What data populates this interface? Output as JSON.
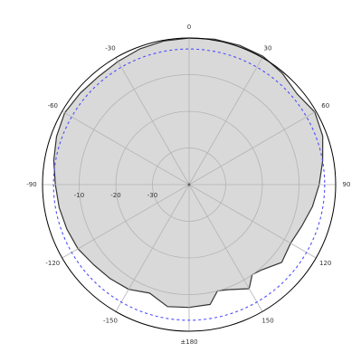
{
  "chart_data": {
    "type": "polar-area",
    "title": "",
    "angle_unit": "degrees",
    "angle_zero": "top",
    "angle_direction": "clockwise",
    "angle_ticks": [
      {
        "angle": 0,
        "label": "0"
      },
      {
        "angle": 30,
        "label": "30"
      },
      {
        "angle": 60,
        "label": "60"
      },
      {
        "angle": 90,
        "label": "90"
      },
      {
        "angle": 120,
        "label": "120"
      },
      {
        "angle": 150,
        "label": "150"
      },
      {
        "angle": 180,
        "label": "±180"
      },
      {
        "angle": -150,
        "label": "-150"
      },
      {
        "angle": -120,
        "label": "-120"
      },
      {
        "angle": -90,
        "label": "-90"
      },
      {
        "angle": -60,
        "label": "-60"
      },
      {
        "angle": -30,
        "label": "-30"
      }
    ],
    "radial_range": [
      -40,
      0
    ],
    "radial_unit": "dB",
    "radial_ticks": [
      {
        "value": -30,
        "label": "-30"
      },
      {
        "value": -20,
        "label": "-20"
      },
      {
        "value": -10,
        "label": "-10"
      },
      {
        "value": 0,
        "label": "0"
      }
    ],
    "grid": true,
    "reference_level_db": -3,
    "series": [
      {
        "style": "filled",
        "points": [
          {
            "angle": 0,
            "db": 0
          },
          {
            "angle": 10,
            "db": 0.3
          },
          {
            "angle": 20,
            "db": 0.4
          },
          {
            "angle": 30,
            "db": 0.4
          },
          {
            "angle": 40,
            "db": -0.4
          },
          {
            "angle": 50,
            "db": -1.5
          },
          {
            "angle": 60,
            "db": -0.4
          },
          {
            "angle": 70,
            "db": -1.2
          },
          {
            "angle": 80,
            "db": -3.0
          },
          {
            "angle": 90,
            "db": -4.5
          },
          {
            "angle": 100,
            "db": -5.8
          },
          {
            "angle": 110,
            "db": -7.2
          },
          {
            "angle": 120,
            "db": -8.0
          },
          {
            "angle": 130,
            "db": -7.0
          },
          {
            "angle": 140,
            "db": -9.5
          },
          {
            "angle": 145,
            "db": -10.0
          },
          {
            "angle": 150,
            "db": -7.2
          },
          {
            "angle": 160,
            "db": -9.5
          },
          {
            "angle": 165,
            "db": -10.0
          },
          {
            "angle": 170,
            "db": -6.8
          },
          {
            "angle": 180,
            "db": -6.5
          },
          {
            "angle": 190,
            "db": -6.2
          },
          {
            "angle": 200,
            "db": -8.5
          },
          {
            "angle": 210,
            "db": -7.0
          },
          {
            "angle": 220,
            "db": -6.5
          },
          {
            "angle": 230,
            "db": -6.0
          },
          {
            "angle": 240,
            "db": -5.0
          },
          {
            "angle": 250,
            "db": -4.5
          },
          {
            "angle": 260,
            "db": -4.0
          },
          {
            "angle": 270,
            "db": -3.5
          },
          {
            "angle": 280,
            "db": -2.5
          },
          {
            "angle": 290,
            "db": -1.5
          },
          {
            "angle": 300,
            "db": -0.8
          },
          {
            "angle": 310,
            "db": -1.2
          },
          {
            "angle": 320,
            "db": -1.5
          },
          {
            "angle": 330,
            "db": -1.2
          },
          {
            "angle": 340,
            "db": -0.6
          },
          {
            "angle": 350,
            "db": -0.2
          }
        ]
      }
    ],
    "colors": {
      "fill": "#d9d9d9",
      "outline": "#333333",
      "grid": "#b3b3b3",
      "frame": "#000000",
      "reference": "#4d4dff"
    }
  }
}
